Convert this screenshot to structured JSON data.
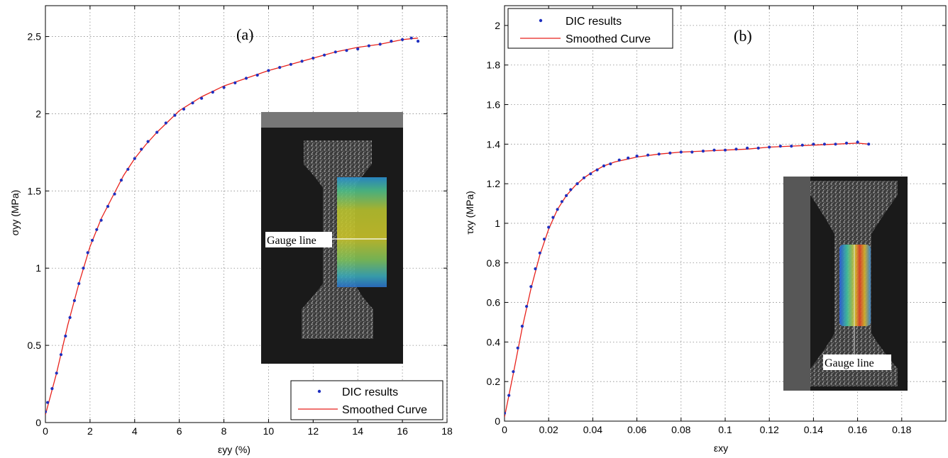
{
  "chart_data": [
    {
      "panel": "(a)",
      "type": "scatter",
      "xlabel": "εyy (%)",
      "ylabel": "σyy (MPa)",
      "xlim": [
        0,
        18
      ],
      "ylim": [
        0,
        2.7
      ],
      "xticks": [
        "0",
        "2",
        "4",
        "6",
        "8",
        "10",
        "12",
        "14",
        "16",
        "18"
      ],
      "yticks": [
        "0",
        "0.5",
        "1",
        "1.5",
        "2",
        "2.5"
      ],
      "grid": true,
      "legend_position": "bottom-right",
      "inset_label": "Gauge line",
      "series": [
        {
          "name": "DIC results",
          "style": "points",
          "color": "#1f2fbf",
          "x": [
            0.0,
            0.1,
            0.3,
            0.5,
            0.7,
            0.9,
            1.1,
            1.3,
            1.5,
            1.7,
            1.9,
            2.1,
            2.3,
            2.5,
            2.8,
            3.1,
            3.4,
            3.7,
            4.0,
            4.3,
            4.6,
            5.0,
            5.4,
            5.8,
            6.2,
            6.6,
            7.0,
            7.5,
            8.0,
            8.5,
            9.0,
            9.5,
            10.0,
            10.5,
            11.0,
            11.5,
            12.0,
            12.5,
            13.0,
            13.5,
            14.0,
            14.5,
            15.0,
            15.5,
            16.0,
            16.4,
            16.7
          ],
          "y": [
            0.07,
            0.13,
            0.22,
            0.32,
            0.44,
            0.56,
            0.68,
            0.79,
            0.9,
            1.0,
            1.1,
            1.18,
            1.25,
            1.31,
            1.4,
            1.48,
            1.57,
            1.64,
            1.71,
            1.77,
            1.82,
            1.88,
            1.94,
            1.99,
            2.03,
            2.07,
            2.1,
            2.14,
            2.17,
            2.2,
            2.23,
            2.25,
            2.28,
            2.3,
            2.32,
            2.34,
            2.36,
            2.38,
            2.4,
            2.41,
            2.42,
            2.44,
            2.45,
            2.47,
            2.48,
            2.49,
            2.47
          ]
        },
        {
          "name": "Smoothed Curve",
          "style": "line",
          "color": "#e8221c",
          "x": [
            0.0,
            0.5,
            1.0,
            1.5,
            2.0,
            2.5,
            3.0,
            3.5,
            4.0,
            4.5,
            5.0,
            6.0,
            7.0,
            8.0,
            9.0,
            10.0,
            11.0,
            12.0,
            13.0,
            14.0,
            15.0,
            16.0,
            16.7
          ],
          "y": [
            0.05,
            0.32,
            0.63,
            0.9,
            1.14,
            1.32,
            1.46,
            1.6,
            1.71,
            1.8,
            1.88,
            2.02,
            2.11,
            2.18,
            2.23,
            2.28,
            2.32,
            2.36,
            2.4,
            2.43,
            2.45,
            2.48,
            2.49
          ]
        }
      ]
    },
    {
      "panel": "(b)",
      "type": "scatter",
      "xlabel": "εxy",
      "ylabel": "τxy (MPa)",
      "xlim": [
        0,
        0.2
      ],
      "ylim": [
        0,
        2.1
      ],
      "xticks": [
        "0",
        "0.02",
        "0.04",
        "0.06",
        "0.08",
        "0.1",
        "0.12",
        "0.14",
        "0.16",
        "0.18"
      ],
      "yticks": [
        "0",
        "0.2",
        "0.4",
        "0.6",
        "0.8",
        "1",
        "1.2",
        "1.4",
        "1.6",
        "1.8",
        "2"
      ],
      "grid": true,
      "legend_position": "top-left",
      "inset_label": "Gauge line",
      "series": [
        {
          "name": "DIC results",
          "style": "points",
          "color": "#1f2fbf",
          "x": [
            0.0,
            0.002,
            0.004,
            0.006,
            0.008,
            0.01,
            0.012,
            0.014,
            0.016,
            0.018,
            0.02,
            0.022,
            0.024,
            0.026,
            0.028,
            0.03,
            0.033,
            0.036,
            0.039,
            0.042,
            0.045,
            0.048,
            0.052,
            0.056,
            0.06,
            0.065,
            0.07,
            0.075,
            0.08,
            0.085,
            0.09,
            0.095,
            0.1,
            0.105,
            0.11,
            0.115,
            0.12,
            0.125,
            0.13,
            0.135,
            0.14,
            0.145,
            0.15,
            0.155,
            0.16,
            0.165
          ],
          "y": [
            0.04,
            0.13,
            0.25,
            0.37,
            0.48,
            0.58,
            0.68,
            0.77,
            0.85,
            0.92,
            0.98,
            1.03,
            1.07,
            1.11,
            1.14,
            1.17,
            1.2,
            1.23,
            1.25,
            1.27,
            1.29,
            1.3,
            1.32,
            1.33,
            1.34,
            1.345,
            1.35,
            1.355,
            1.36,
            1.36,
            1.365,
            1.37,
            1.37,
            1.375,
            1.38,
            1.38,
            1.385,
            1.39,
            1.39,
            1.395,
            1.4,
            1.4,
            1.4,
            1.405,
            1.41,
            1.4
          ]
        },
        {
          "name": "Smoothed Curve",
          "style": "line",
          "color": "#e8221c",
          "x": [
            0.0,
            0.004,
            0.008,
            0.012,
            0.016,
            0.02,
            0.024,
            0.028,
            0.032,
            0.036,
            0.04,
            0.045,
            0.05,
            0.06,
            0.07,
            0.08,
            0.09,
            0.1,
            0.11,
            0.12,
            0.13,
            0.14,
            0.15,
            0.16,
            0.165
          ],
          "y": [
            0.02,
            0.24,
            0.47,
            0.67,
            0.84,
            0.97,
            1.07,
            1.14,
            1.19,
            1.23,
            1.26,
            1.29,
            1.31,
            1.335,
            1.35,
            1.36,
            1.365,
            1.37,
            1.375,
            1.385,
            1.39,
            1.395,
            1.4,
            1.405,
            1.4
          ]
        }
      ]
    }
  ]
}
